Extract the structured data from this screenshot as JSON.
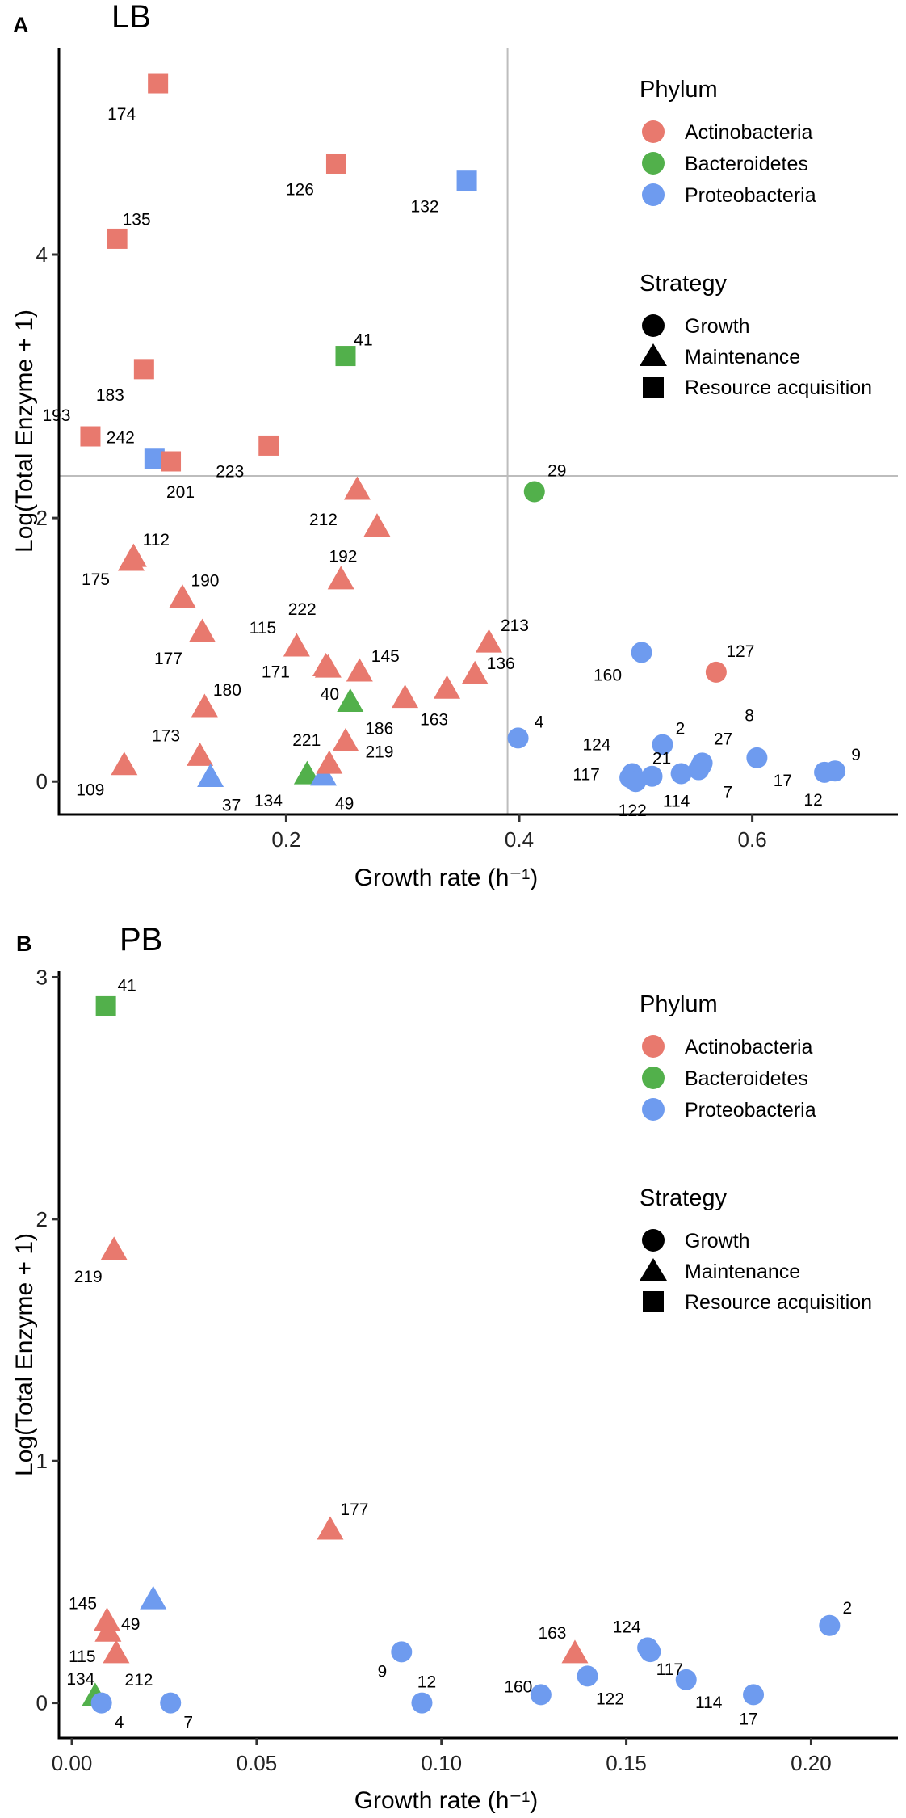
{
  "colors": {
    "Actinobacteria": "#E8796E",
    "Bacteroidetes": "#52B04B",
    "Proteobacteria": "#6E9BEF",
    "reference_line": "#BDBDBD"
  },
  "legend": {
    "phylum_title": "Phylum",
    "phylum_items": [
      "Actinobacteria",
      "Bacteroidetes",
      "Proteobacteria"
    ],
    "strategy_title": "Strategy",
    "strategy_items": [
      {
        "label": "Growth",
        "shape": "circle"
      },
      {
        "label": "Maintenance",
        "shape": "triangle"
      },
      {
        "label": "Resource acquisition",
        "shape": "square"
      }
    ]
  },
  "chart_data": [
    {
      "type": "scatter",
      "panel_letter": "A",
      "title": "LB",
      "xlabel": "Growth rate (h⁻¹)",
      "ylabel": "Log(Total Enzyme + 1)",
      "xlim": [
        0.005,
        0.725
      ],
      "ylim": [
        -0.25,
        5.57
      ],
      "xticks": [
        0.2,
        0.4,
        0.6
      ],
      "xtick_labels": [
        "0.2",
        "0.4",
        "0.6"
      ],
      "yticks": [
        0,
        2,
        4
      ],
      "ytick_labels": [
        "0",
        "2",
        "4"
      ],
      "grid": false,
      "legend_position": "right",
      "reference_lines": {
        "x": 0.39,
        "y": 2.32
      },
      "points": [
        {
          "label": "174",
          "x": 0.09,
          "y": 5.3,
          "phylum": "Actinobacteria",
          "strategy": "Resource acquisition"
        },
        {
          "label": "126",
          "x": 0.243,
          "y": 4.69,
          "phylum": "Actinobacteria",
          "strategy": "Resource acquisition"
        },
        {
          "label": "132",
          "x": 0.355,
          "y": 4.56,
          "phylum": "Proteobacteria",
          "strategy": "Resource acquisition"
        },
        {
          "label": "135",
          "x": 0.055,
          "y": 4.12,
          "phylum": "Actinobacteria",
          "strategy": "Resource acquisition"
        },
        {
          "label": "41",
          "x": 0.251,
          "y": 3.23,
          "phylum": "Bacteroidetes",
          "strategy": "Resource acquisition"
        },
        {
          "label": "183",
          "x": 0.078,
          "y": 3.13,
          "phylum": "Actinobacteria",
          "strategy": "Resource acquisition"
        },
        {
          "label": "193",
          "x": 0.032,
          "y": 2.62,
          "phylum": "Actinobacteria",
          "strategy": "Resource acquisition"
        },
        {
          "label": "242",
          "x": 0.087,
          "y": 2.45,
          "phylum": "Proteobacteria",
          "strategy": "Resource acquisition"
        },
        {
          "label": "201",
          "x": 0.101,
          "y": 2.43,
          "phylum": "Actinobacteria",
          "strategy": "Resource acquisition"
        },
        {
          "label": "223",
          "x": 0.185,
          "y": 2.55,
          "phylum": "Actinobacteria",
          "strategy": "Resource acquisition"
        },
        {
          "label": "212",
          "x": 0.261,
          "y": 2.21,
          "phylum": "Actinobacteria",
          "strategy": "Maintenance"
        },
        {
          "label": "192",
          "x": 0.278,
          "y": 1.93,
          "phylum": "Actinobacteria",
          "strategy": "Maintenance"
        },
        {
          "label": "112",
          "x": 0.069,
          "y": 1.7,
          "phylum": "Actinobacteria",
          "strategy": "Maintenance"
        },
        {
          "label": "175",
          "x": 0.067,
          "y": 1.67,
          "phylum": "Actinobacteria",
          "strategy": "Maintenance"
        },
        {
          "label": "190",
          "x": 0.111,
          "y": 1.39,
          "phylum": "Actinobacteria",
          "strategy": "Maintenance"
        },
        {
          "label": "222",
          "x": 0.247,
          "y": 1.53,
          "phylum": "Actinobacteria",
          "strategy": "Maintenance"
        },
        {
          "label": "177",
          "x": 0.128,
          "y": 1.13,
          "phylum": "Actinobacteria",
          "strategy": "Maintenance"
        },
        {
          "label": "115",
          "x": 0.209,
          "y": 1.02,
          "phylum": "Actinobacteria",
          "strategy": "Maintenance"
        },
        {
          "label": "171",
          "x": 0.234,
          "y": 0.87,
          "phylum": "Actinobacteria",
          "strategy": "Maintenance"
        },
        {
          "label": "40",
          "x": 0.236,
          "y": 0.86,
          "phylum": "Actinobacteria",
          "strategy": "Maintenance"
        },
        {
          "label": "145",
          "x": 0.263,
          "y": 0.83,
          "phylum": "Actinobacteria",
          "strategy": "Maintenance"
        },
        {
          "label": "180",
          "x": 0.13,
          "y": 0.56,
          "phylum": "Actinobacteria",
          "strategy": "Maintenance"
        },
        {
          "label": "186",
          "x": 0.255,
          "y": 0.6,
          "phylum": "Bacteroidetes",
          "strategy": "Maintenance"
        },
        {
          "label": "163",
          "x": 0.302,
          "y": 0.63,
          "phylum": "Actinobacteria",
          "strategy": "Maintenance"
        },
        {
          "label": "",
          "x": 0.338,
          "y": 0.7,
          "phylum": "Actinobacteria",
          "strategy": "Maintenance"
        },
        {
          "label": "136",
          "x": 0.362,
          "y": 0.81,
          "phylum": "Actinobacteria",
          "strategy": "Maintenance"
        },
        {
          "label": "213",
          "x": 0.374,
          "y": 1.05,
          "phylum": "Actinobacteria",
          "strategy": "Maintenance"
        },
        {
          "label": "173",
          "x": 0.126,
          "y": 0.19,
          "phylum": "Actinobacteria",
          "strategy": "Maintenance"
        },
        {
          "label": "37",
          "x": 0.135,
          "y": 0.03,
          "phylum": "Proteobacteria",
          "strategy": "Maintenance"
        },
        {
          "label": "109",
          "x": 0.061,
          "y": 0.12,
          "phylum": "Actinobacteria",
          "strategy": "Maintenance"
        },
        {
          "label": "134",
          "x": 0.218,
          "y": 0.05,
          "phylum": "Bacteroidetes",
          "strategy": "Maintenance"
        },
        {
          "label": "49",
          "x": 0.232,
          "y": 0.04,
          "phylum": "Proteobacteria",
          "strategy": "Maintenance"
        },
        {
          "label": "221",
          "x": 0.237,
          "y": 0.13,
          "phylum": "Actinobacteria",
          "strategy": "Maintenance"
        },
        {
          "label": "219",
          "x": 0.251,
          "y": 0.3,
          "phylum": "Actinobacteria",
          "strategy": "Maintenance"
        },
        {
          "label": "29",
          "x": 0.413,
          "y": 2.2,
          "phylum": "Bacteroidetes",
          "strategy": "Growth"
        },
        {
          "label": "160",
          "x": 0.505,
          "y": 0.98,
          "phylum": "Proteobacteria",
          "strategy": "Growth"
        },
        {
          "label": "127",
          "x": 0.569,
          "y": 0.83,
          "phylum": "Actinobacteria",
          "strategy": "Growth"
        },
        {
          "label": "4",
          "x": 0.399,
          "y": 0.33,
          "phylum": "Proteobacteria",
          "strategy": "Growth"
        },
        {
          "label": "2",
          "x": 0.523,
          "y": 0.28,
          "phylum": "Proteobacteria",
          "strategy": "Growth"
        },
        {
          "label": "124",
          "x": 0.497,
          "y": 0.06,
          "phylum": "Proteobacteria",
          "strategy": "Growth"
        },
        {
          "label": "117",
          "x": 0.495,
          "y": 0.03,
          "phylum": "Proteobacteria",
          "strategy": "Growth"
        },
        {
          "label": "122",
          "x": 0.5,
          "y": 0.0,
          "phylum": "Proteobacteria",
          "strategy": "Growth"
        },
        {
          "label": "21",
          "x": 0.514,
          "y": 0.04,
          "phylum": "Proteobacteria",
          "strategy": "Growth"
        },
        {
          "label": "114",
          "x": 0.539,
          "y": 0.06,
          "phylum": "Proteobacteria",
          "strategy": "Growth"
        },
        {
          "label": "7",
          "x": 0.554,
          "y": 0.09,
          "phylum": "Proteobacteria",
          "strategy": "Growth"
        },
        {
          "label": "27",
          "x": 0.557,
          "y": 0.14,
          "phylum": "Proteobacteria",
          "strategy": "Growth"
        },
        {
          "label": "8",
          "x": 0.556,
          "y": 0.12,
          "phylum": "Proteobacteria",
          "strategy": "Growth"
        },
        {
          "label": "17",
          "x": 0.604,
          "y": 0.18,
          "phylum": "Proteobacteria",
          "strategy": "Growth"
        },
        {
          "label": "12",
          "x": 0.662,
          "y": 0.07,
          "phylum": "Proteobacteria",
          "strategy": "Growth"
        },
        {
          "label": "9",
          "x": 0.671,
          "y": 0.08,
          "phylum": "Proteobacteria",
          "strategy": "Growth"
        }
      ]
    },
    {
      "type": "scatter",
      "panel_letter": "B",
      "title": "PB",
      "xlabel": "Growth rate (h⁻¹)",
      "ylabel": "Log(Total Enzyme + 1)",
      "xlim": [
        -0.0035,
        0.2235
      ],
      "ylim": [
        -0.145,
        3.025
      ],
      "xticks": [
        0.0,
        0.05,
        0.1,
        0.15,
        0.2
      ],
      "xtick_labels": [
        "0.00",
        "0.05",
        "0.10",
        "0.15",
        "0.20"
      ],
      "yticks": [
        0,
        1,
        2,
        3
      ],
      "ytick_labels": [
        "0",
        "1",
        "2",
        "3"
      ],
      "grid": false,
      "legend_position": "right",
      "points": [
        {
          "label": "41",
          "x": 0.0092,
          "y": 2.88,
          "phylum": "Bacteroidetes",
          "strategy": "Resource acquisition"
        },
        {
          "label": "219",
          "x": 0.0114,
          "y": 1.87,
          "phylum": "Actinobacteria",
          "strategy": "Maintenance"
        },
        {
          "label": "177",
          "x": 0.0699,
          "y": 0.714,
          "phylum": "Actinobacteria",
          "strategy": "Maintenance"
        },
        {
          "label": "49",
          "x": 0.022,
          "y": 0.426,
          "phylum": "Proteobacteria",
          "strategy": "Maintenance"
        },
        {
          "label": "145",
          "x": 0.0095,
          "y": 0.337,
          "phylum": "Actinobacteria",
          "strategy": "Maintenance"
        },
        {
          "label": "115",
          "x": 0.0098,
          "y": 0.292,
          "phylum": "Actinobacteria",
          "strategy": "Maintenance"
        },
        {
          "label": "212",
          "x": 0.012,
          "y": 0.203,
          "phylum": "Actinobacteria",
          "strategy": "Maintenance"
        },
        {
          "label": "134",
          "x": 0.0063,
          "y": 0.026,
          "phylum": "Bacteroidetes",
          "strategy": "Maintenance"
        },
        {
          "label": "4",
          "x": 0.008,
          "y": 0.0,
          "phylum": "Proteobacteria",
          "strategy": "Growth"
        },
        {
          "label": "7",
          "x": 0.0267,
          "y": 0.0,
          "phylum": "Proteobacteria",
          "strategy": "Growth"
        },
        {
          "label": "9",
          "x": 0.0892,
          "y": 0.211,
          "phylum": "Proteobacteria",
          "strategy": "Growth"
        },
        {
          "label": "12",
          "x": 0.0947,
          "y": 0.0,
          "phylum": "Proteobacteria",
          "strategy": "Growth"
        },
        {
          "label": "163",
          "x": 0.1361,
          "y": 0.203,
          "phylum": "Actinobacteria",
          "strategy": "Maintenance"
        },
        {
          "label": "160",
          "x": 0.1269,
          "y": 0.034,
          "phylum": "Proteobacteria",
          "strategy": "Growth"
        },
        {
          "label": "122",
          "x": 0.1395,
          "y": 0.111,
          "phylum": "Proteobacteria",
          "strategy": "Growth"
        },
        {
          "label": "124",
          "x": 0.1558,
          "y": 0.228,
          "phylum": "Proteobacteria",
          "strategy": "Growth"
        },
        {
          "label": "117",
          "x": 0.1565,
          "y": 0.212,
          "phylum": "Proteobacteria",
          "strategy": "Growth"
        },
        {
          "label": "114",
          "x": 0.1662,
          "y": 0.096,
          "phylum": "Proteobacteria",
          "strategy": "Growth"
        },
        {
          "label": "17",
          "x": 0.1844,
          "y": 0.034,
          "phylum": "Proteobacteria",
          "strategy": "Growth"
        },
        {
          "label": "2",
          "x": 0.205,
          "y": 0.32,
          "phylum": "Proteobacteria",
          "strategy": "Growth"
        }
      ]
    }
  ]
}
